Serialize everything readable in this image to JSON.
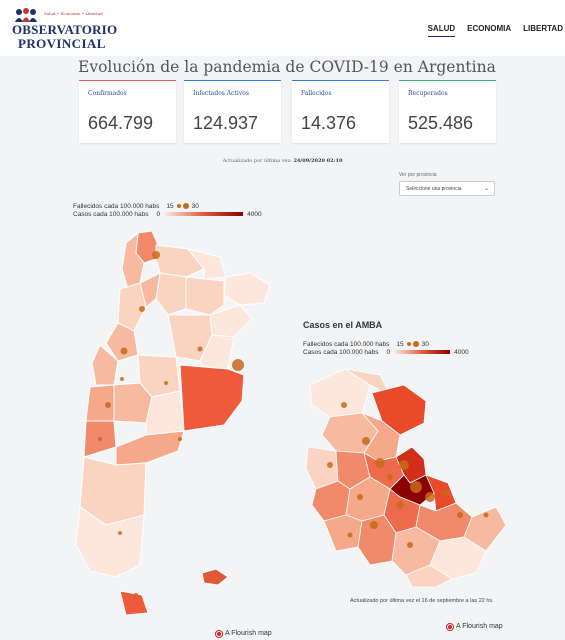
{
  "logo": {
    "tagline": "Salud • Economía • Libertad",
    "line1": "OBSERVATORIO",
    "line2": "PROVINCIAL"
  },
  "nav": [
    {
      "label": "SALUD",
      "active": true
    },
    {
      "label": "ECONOMIA",
      "active": false
    },
    {
      "label": "LIBERTAD",
      "active": false
    }
  ],
  "title": "Evolución de la pandemia de COVID-19 en Argentina",
  "cards": [
    {
      "label": "Confirmados",
      "value": "664.799",
      "accent": "#e06060"
    },
    {
      "label": "Infectados Activos",
      "value": "124.937",
      "accent": "#3a7bd5"
    },
    {
      "label": "Fallecidos",
      "value": "14.376",
      "accent": "#3a7bd5"
    },
    {
      "label": "Recuperados",
      "value": "525.486",
      "accent": "#3cb371"
    }
  ],
  "updated": {
    "prefix": "Actualizado por última vez:",
    "date": "24/09/2020 02:10"
  },
  "province": {
    "label": "Ver por provincia",
    "selected": "Seleccione una provincia"
  },
  "legend_main": {
    "deaths_label": "Fallecidos cada 100.000 habs",
    "deaths_min": "15",
    "deaths_max": "30",
    "cases_label": "Casos cada 100.000 habs",
    "cases_min": "0",
    "cases_max": "4000"
  },
  "amba": {
    "title": "Casos en el AMBA",
    "deaths_label": "Fallecidos cada 100.000 habs",
    "deaths_min": "15",
    "deaths_max": "30",
    "cases_label": "Casos cada 100.000 habs",
    "cases_min": "0",
    "cases_max": "4000",
    "note": "Actualizado por última vez el 16 de septiembre a las 22 hs."
  },
  "flourish_label": "A Flourish map",
  "colors": {
    "brand": "#1b2f6e",
    "low": "#fde6dc",
    "mid": "#e05a3a",
    "high": "#8b0000",
    "dot": "#c86a1a"
  }
}
